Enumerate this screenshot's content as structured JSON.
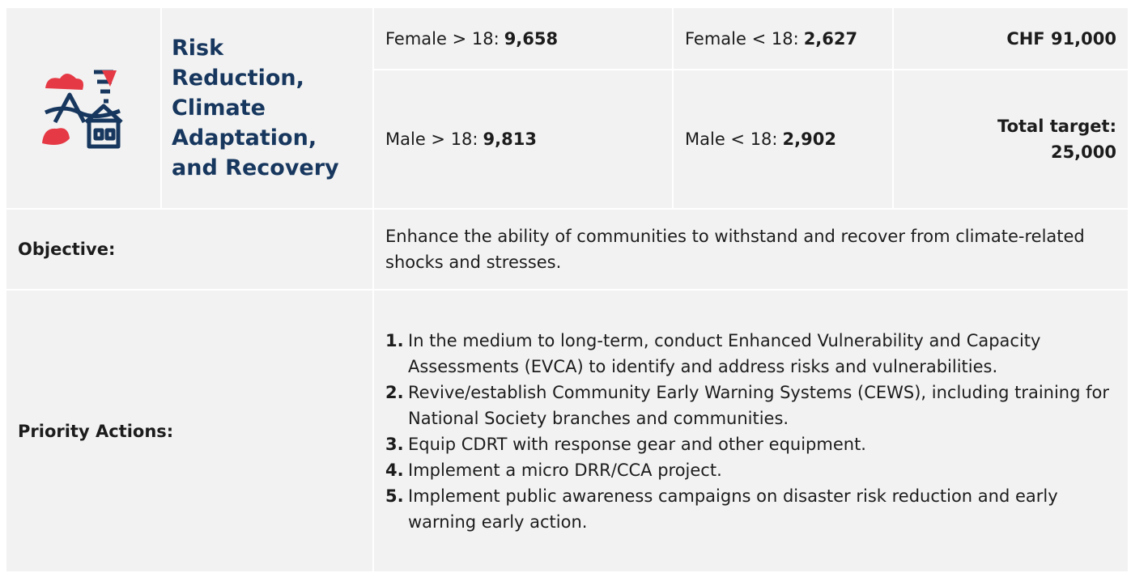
{
  "sector": {
    "title": "Risk Reduction, Climate Adaptation, and Recovery"
  },
  "targets": [
    {
      "label": "Female > 18:",
      "value": "9,658"
    },
    {
      "label": "Female < 18:",
      "value": "2,627"
    },
    {
      "label": "Male > 18:",
      "value": "9,813"
    },
    {
      "label": "Male < 18:",
      "value": "2,902"
    }
  ],
  "budget": "CHF 91,000",
  "total_target": {
    "label": "Total target:",
    "value": "25,000"
  },
  "objective": {
    "label": "Objective:",
    "text": "Enhance the ability of communities to withstand and recover from climate-related shocks and stresses."
  },
  "priority_actions": {
    "label": "Priority Actions:",
    "items": [
      {
        "number": "1.",
        "text": "In the medium to long-term, conduct Enhanced Vulnerability and Capacity Assessments (EVCA) to identify and address risks and vulnerabilities."
      },
      {
        "number": "2.",
        "text": "Revive/establish Community Early Warning Systems (CEWS), including training for National Society branches and communities."
      },
      {
        "number": "3.",
        "text": "Equip CDRT with response gear and other equipment."
      },
      {
        "number": "4.",
        "text": "Implement a micro DRR/CCA project."
      },
      {
        "number": "5.",
        "text": "Implement public awareness campaigns on disaster risk reduction and early warning early action."
      }
    ]
  }
}
